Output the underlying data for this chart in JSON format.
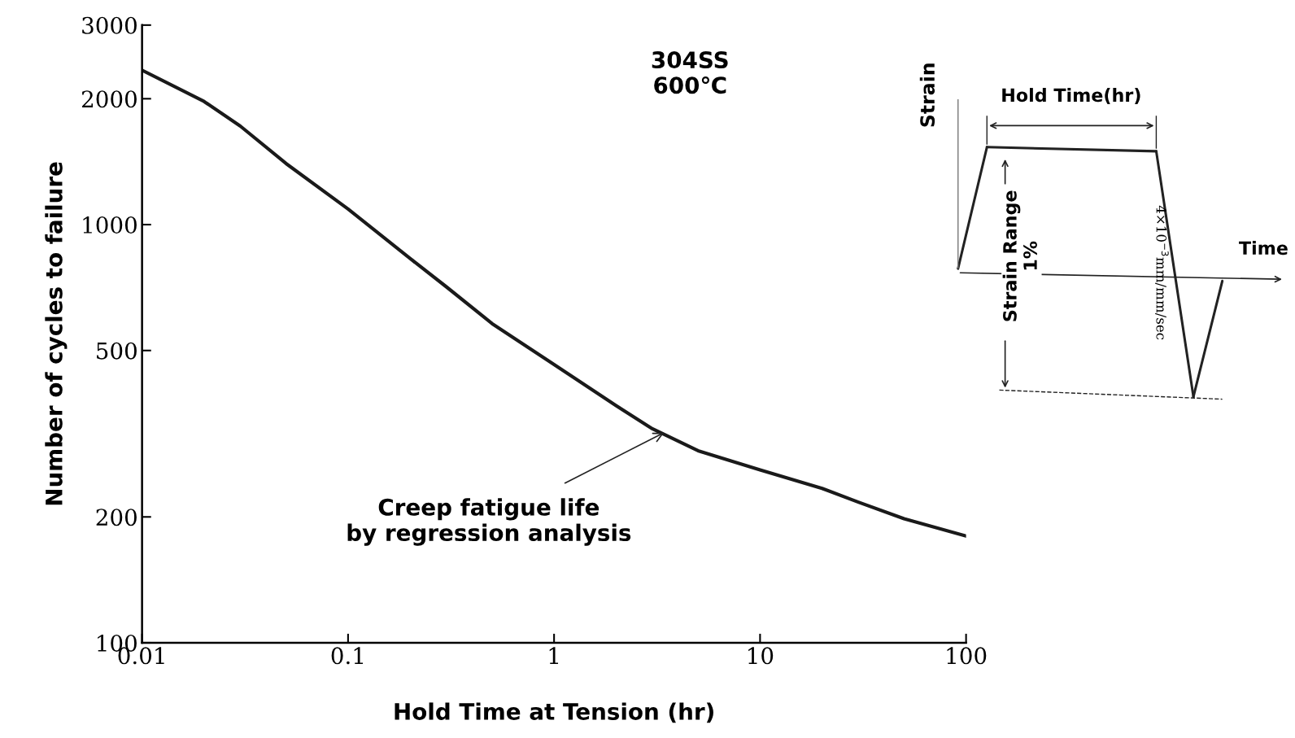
{
  "chart_data": {
    "type": "line",
    "xlabel": "Hold Time at Tension (hr)",
    "ylabel": "Number of cycles to failure",
    "x": [
      0.01,
      0.02,
      0.03,
      0.05,
      0.1,
      0.2,
      0.3,
      0.5,
      1,
      2,
      3,
      5,
      10,
      20,
      30,
      50,
      100
    ],
    "series": [
      {
        "color": "#1a1a1a",
        "values": [
          2340,
          1970,
          1720,
          1400,
          1090,
          830,
          710,
          580,
          463,
          369,
          325,
          288,
          259,
          234,
          217,
          198,
          180
        ]
      }
    ],
    "log": "xy",
    "xlim": [
      0.01,
      100
    ],
    "ylim": [
      100,
      3000
    ],
    "xticks": [
      0.01,
      0.1,
      1,
      10,
      100
    ],
    "yticks": [
      100,
      200,
      500,
      1000,
      2000,
      3000
    ],
    "grid": false,
    "marker": "none",
    "line_style": "solid",
    "annotations": [
      "304SS\n600℃",
      {
        "text": "Creep fatigue life\nby regression analysis",
        "x": 3.5,
        "y": 320
      },
      "Strain",
      "Hold Time(hr)",
      "Strain Range\n1%",
      "4×10$^{−3}$mm/mm/sec",
      "Time"
    ]
  }
}
